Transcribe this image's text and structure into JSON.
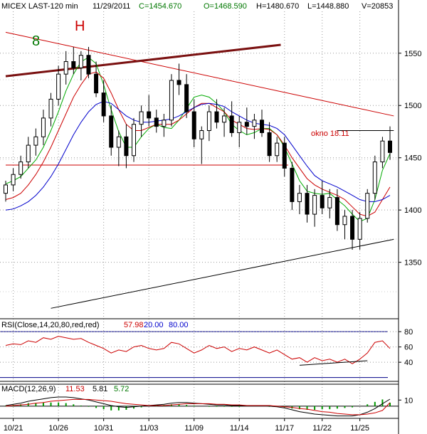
{
  "header": {
    "instrument": "MICEX LAST-120 min",
    "date": "11/29/2011",
    "close": "C=1454.670",
    "open": "O=1468.590",
    "high": "H=1480.670",
    "low": "L=1448.880",
    "volume": "V=20853",
    "colors": {
      "instrument": "#000000",
      "date": "#000000",
      "close": "#007700",
      "open": "#007700",
      "high": "#000000",
      "low": "#000000",
      "volume": "#000000"
    }
  },
  "annotations": {
    "wave_8": {
      "text": "8",
      "color": "#007700"
    },
    "wave_h": {
      "text": "H",
      "color": "#cc0000"
    },
    "okno": {
      "text": "okno 18.11",
      "color": "#cc0000"
    }
  },
  "rsi_header": {
    "label": "RSI(Close,14,20,80,red,red)",
    "value": "57.98",
    "low": "20.00",
    "high": "80.00"
  },
  "macd_header": {
    "label": "MACD(12,26,9)",
    "macd": "11.53",
    "signal": "5.81",
    "hist": "5.72"
  },
  "chart_data": [
    {
      "type": "candlestick",
      "name": "price",
      "y_ticks": [
        "1550",
        "1500",
        "1450",
        "1400",
        "1350"
      ],
      "y_values": [
        1550,
        1500,
        1450,
        1400,
        1350
      ],
      "ylim": [
        1296,
        1590
      ],
      "x_tick_labels": [
        "10/21",
        "10/26",
        "10/31",
        "11/03",
        "11/09",
        "11/14",
        "11/17",
        "11/22",
        "11/25"
      ],
      "grid": true,
      "last_close": 1454.67,
      "overlays": [
        {
          "name": "fast MA",
          "color": "#00aa00",
          "values": [
            1425,
            1428,
            1432,
            1440,
            1448,
            1460,
            1476,
            1494,
            1514,
            1530,
            1542,
            1546,
            1540,
            1520,
            1496,
            1475,
            1460,
            1460,
            1470,
            1478,
            1482,
            1479,
            1478,
            1486,
            1497,
            1508,
            1510,
            1508,
            1502,
            1494,
            1482,
            1476,
            1472,
            1474,
            1478,
            1478,
            1472,
            1460,
            1444,
            1428,
            1418,
            1416,
            1415,
            1416,
            1410,
            1404,
            1396,
            1389,
            1392,
            1410,
            1438,
            1454
          ]
        },
        {
          "name": "mid MA",
          "color": "#cc0000",
          "values": [
            1410,
            1412,
            1416,
            1424,
            1434,
            1446,
            1460,
            1476,
            1492,
            1508,
            1520,
            1530,
            1532,
            1526,
            1512,
            1496,
            1482,
            1476,
            1476,
            1479,
            1482,
            1482,
            1482,
            1486,
            1492,
            1498,
            1502,
            1502,
            1498,
            1494,
            1486,
            1482,
            1478,
            1477,
            1478,
            1477,
            1472,
            1462,
            1450,
            1440,
            1430,
            1424,
            1420,
            1417,
            1414,
            1410,
            1403,
            1396,
            1394,
            1398,
            1410,
            1422
          ]
        },
        {
          "name": "slow MA",
          "color": "#0000cc",
          "values": [
            1400,
            1401,
            1404,
            1408,
            1414,
            1422,
            1432,
            1444,
            1458,
            1472,
            1484,
            1494,
            1501,
            1504,
            1502,
            1496,
            1490,
            1486,
            1484,
            1484,
            1485,
            1486,
            1487,
            1490,
            1494,
            1498,
            1501,
            1502,
            1501,
            1499,
            1494,
            1490,
            1486,
            1483,
            1482,
            1481,
            1478,
            1472,
            1462,
            1452,
            1442,
            1433,
            1428,
            1425,
            1422,
            1418,
            1414,
            1410,
            1408,
            1408,
            1410,
            1414
          ]
        }
      ],
      "candles": [
        {
          "o": 1416,
          "h": 1428,
          "l": 1408,
          "c": 1424
        },
        {
          "o": 1424,
          "h": 1440,
          "l": 1418,
          "c": 1434
        },
        {
          "o": 1434,
          "h": 1452,
          "l": 1430,
          "c": 1446
        },
        {
          "o": 1446,
          "h": 1470,
          "l": 1440,
          "c": 1462
        },
        {
          "o": 1462,
          "h": 1478,
          "l": 1452,
          "c": 1470
        },
        {
          "o": 1470,
          "h": 1496,
          "l": 1462,
          "c": 1488
        },
        {
          "o": 1488,
          "h": 1512,
          "l": 1480,
          "c": 1506
        },
        {
          "o": 1506,
          "h": 1538,
          "l": 1500,
          "c": 1530
        },
        {
          "o": 1530,
          "h": 1552,
          "l": 1520,
          "c": 1542
        },
        {
          "o": 1542,
          "h": 1556,
          "l": 1530,
          "c": 1536
        },
        {
          "o": 1536,
          "h": 1552,
          "l": 1524,
          "c": 1548
        },
        {
          "o": 1548,
          "h": 1556,
          "l": 1526,
          "c": 1530
        },
        {
          "o": 1530,
          "h": 1542,
          "l": 1508,
          "c": 1512
        },
        {
          "o": 1512,
          "h": 1524,
          "l": 1484,
          "c": 1490
        },
        {
          "o": 1490,
          "h": 1500,
          "l": 1452,
          "c": 1460
        },
        {
          "o": 1460,
          "h": 1476,
          "l": 1442,
          "c": 1470
        },
        {
          "o": 1470,
          "h": 1482,
          "l": 1440,
          "c": 1452
        },
        {
          "o": 1452,
          "h": 1488,
          "l": 1446,
          "c": 1482
        },
        {
          "o": 1482,
          "h": 1500,
          "l": 1470,
          "c": 1494
        },
        {
          "o": 1494,
          "h": 1510,
          "l": 1480,
          "c": 1488
        },
        {
          "o": 1488,
          "h": 1496,
          "l": 1474,
          "c": 1480
        },
        {
          "o": 1480,
          "h": 1492,
          "l": 1470,
          "c": 1486
        },
        {
          "o": 1486,
          "h": 1530,
          "l": 1480,
          "c": 1524
        },
        {
          "o": 1524,
          "h": 1540,
          "l": 1510,
          "c": 1520
        },
        {
          "o": 1520,
          "h": 1530,
          "l": 1488,
          "c": 1494
        },
        {
          "o": 1494,
          "h": 1506,
          "l": 1460,
          "c": 1468
        },
        {
          "o": 1468,
          "h": 1480,
          "l": 1444,
          "c": 1476
        },
        {
          "o": 1476,
          "h": 1500,
          "l": 1466,
          "c": 1494
        },
        {
          "o": 1494,
          "h": 1506,
          "l": 1478,
          "c": 1484
        },
        {
          "o": 1484,
          "h": 1498,
          "l": 1470,
          "c": 1490
        },
        {
          "o": 1490,
          "h": 1504,
          "l": 1470,
          "c": 1474
        },
        {
          "o": 1474,
          "h": 1490,
          "l": 1460,
          "c": 1484
        },
        {
          "o": 1484,
          "h": 1498,
          "l": 1472,
          "c": 1480
        },
        {
          "o": 1480,
          "h": 1492,
          "l": 1468,
          "c": 1486
        },
        {
          "o": 1486,
          "h": 1496,
          "l": 1470,
          "c": 1474
        },
        {
          "o": 1474,
          "h": 1484,
          "l": 1446,
          "c": 1452
        },
        {
          "o": 1452,
          "h": 1470,
          "l": 1446,
          "c": 1464
        },
        {
          "o": 1464,
          "h": 1470,
          "l": 1432,
          "c": 1440
        },
        {
          "o": 1440,
          "h": 1446,
          "l": 1400,
          "c": 1408
        },
        {
          "o": 1408,
          "h": 1424,
          "l": 1396,
          "c": 1416
        },
        {
          "o": 1416,
          "h": 1424,
          "l": 1388,
          "c": 1396
        },
        {
          "o": 1396,
          "h": 1420,
          "l": 1384,
          "c": 1414
        },
        {
          "o": 1414,
          "h": 1428,
          "l": 1396,
          "c": 1402
        },
        {
          "o": 1402,
          "h": 1420,
          "l": 1392,
          "c": 1412
        },
        {
          "o": 1412,
          "h": 1420,
          "l": 1380,
          "c": 1386
        },
        {
          "o": 1386,
          "h": 1400,
          "l": 1372,
          "c": 1394
        },
        {
          "o": 1394,
          "h": 1400,
          "l": 1362,
          "c": 1372
        },
        {
          "o": 1372,
          "h": 1398,
          "l": 1362,
          "c": 1392
        },
        {
          "o": 1392,
          "h": 1420,
          "l": 1388,
          "c": 1416
        },
        {
          "o": 1416,
          "h": 1452,
          "l": 1410,
          "c": 1446
        },
        {
          "o": 1446,
          "h": 1470,
          "l": 1440,
          "c": 1466
        },
        {
          "o": 1466,
          "h": 1480,
          "l": 1448,
          "c": 1455
        }
      ],
      "drawn_lines": [
        {
          "name": "upper-channel-line",
          "color": "#cc0000",
          "from": [
            0,
            1570
          ],
          "to": [
            51.5,
            1490
          ]
        },
        {
          "name": "support-line-1443",
          "color": "#cc0000",
          "from": [
            0,
            1443
          ],
          "to": [
            37.5,
            1443
          ]
        },
        {
          "name": "brown-trend-line",
          "color": "#7a1010",
          "from": [
            0,
            1528
          ],
          "to": [
            36.5,
            1558
          ]
        },
        {
          "name": "rising-support-line",
          "color": "#000000",
          "from": [
            6,
            1306
          ],
          "to": [
            51.5,
            1372
          ]
        },
        {
          "name": "okno-resistance-line",
          "color": "#000000",
          "from": [
            44,
            1476
          ],
          "to": [
            51.5,
            1476
          ]
        }
      ]
    },
    {
      "type": "line",
      "name": "RSI",
      "y_ticks": [
        "80",
        "60",
        "40"
      ],
      "y_values": [
        80,
        60,
        40
      ],
      "ylim": [
        15,
        82
      ],
      "levels": [
        20,
        80
      ],
      "series": [
        {
          "name": "RSI",
          "color": "#cc0000",
          "values": [
            62,
            64,
            63,
            68,
            66,
            72,
            70,
            74,
            72,
            70,
            71,
            66,
            62,
            58,
            52,
            56,
            54,
            60,
            62,
            58,
            56,
            58,
            66,
            64,
            58,
            52,
            56,
            62,
            58,
            60,
            54,
            58,
            56,
            60,
            56,
            52,
            56,
            50,
            44,
            46,
            40,
            46,
            42,
            44,
            40,
            44,
            38,
            44,
            52,
            66,
            68,
            58
          ]
        }
      ],
      "trend_line": {
        "color": "#000000",
        "from": [
          39,
          36
        ],
        "to": [
          48,
          42
        ]
      }
    },
    {
      "type": "line",
      "name": "MACD",
      "y_ticks": [
        "10"
      ],
      "y_values": [
        10
      ],
      "ylim": [
        -20,
        22
      ],
      "series": [
        {
          "name": "MACD",
          "color": "#000000",
          "values": [
            1,
            3,
            5,
            8,
            10,
            12,
            14,
            15,
            15,
            14,
            12,
            10,
            7,
            4,
            1,
            -1,
            -2,
            -1,
            0,
            1,
            2,
            3,
            5,
            6,
            6,
            5,
            4,
            3,
            2,
            2,
            1,
            1,
            1,
            1,
            1,
            0,
            -1,
            -3,
            -6,
            -9,
            -11,
            -13,
            -14,
            -15,
            -16,
            -16,
            -16,
            -14,
            -10,
            -4,
            4,
            11.53
          ]
        },
        {
          "name": "Signal",
          "color": "#cc0000",
          "values": [
            0,
            1,
            2,
            3,
            5,
            6,
            8,
            9,
            10,
            11,
            11,
            11,
            10,
            9,
            8,
            6,
            4,
            3,
            2,
            1,
            1,
            1,
            2,
            3,
            4,
            4,
            4,
            4,
            3,
            3,
            2,
            2,
            1,
            1,
            1,
            1,
            0,
            -1,
            -2,
            -4,
            -5,
            -7,
            -9,
            -10,
            -12,
            -13,
            -14,
            -14,
            -13,
            -11,
            -7,
            5.81
          ]
        }
      ],
      "histogram": {
        "name": "Histogram",
        "color": "#009900",
        "values": [
          1,
          2,
          3,
          5,
          5,
          6,
          6,
          6,
          5,
          3,
          1,
          -1,
          -3,
          -5,
          -7,
          -7,
          -6,
          -4,
          -2,
          0,
          1,
          2,
          3,
          3,
          2,
          1,
          0,
          -1,
          -1,
          -1,
          -1,
          -1,
          0,
          0,
          0,
          -1,
          -1,
          -2,
          -4,
          -5,
          -6,
          -6,
          -5,
          -5,
          -4,
          -3,
          -2,
          0,
          3,
          7,
          11,
          5.72
        ]
      }
    }
  ]
}
